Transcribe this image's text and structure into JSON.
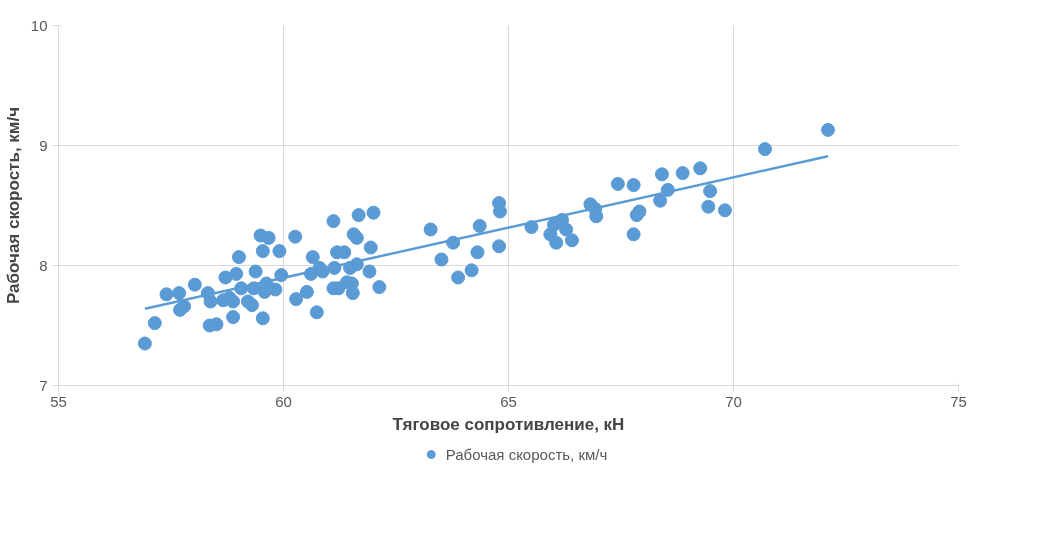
{
  "chart_data": {
    "type": "scatter",
    "xlabel": "Тяговое сопротивление, кН",
    "ylabel": "Рабочая скорость, км/ч",
    "xlim": [
      55,
      75
    ],
    "xticks": [
      55,
      60,
      65,
      70,
      75
    ],
    "ylim": [
      7,
      10
    ],
    "yticks": [
      7,
      8,
      9,
      10
    ],
    "grid": true,
    "legend": "bottom",
    "marker": "circle",
    "series": [
      {
        "name": "Рабочая скорость, км/ч",
        "color": "#5b9bd5",
        "x": [
          56.92,
          57.14,
          57.4,
          57.68,
          57.7,
          57.79,
          58.03,
          58.32,
          58.38,
          58.36,
          58.51,
          58.71,
          58.66,
          58.8,
          58.88,
          58.88,
          58.95,
          59.01,
          59.06,
          59.21,
          59.3,
          59.34,
          59.38,
          59.49,
          59.54,
          59.54,
          59.58,
          59.62,
          59.67,
          59.82,
          59.91,
          59.95,
          60.26,
          60.28,
          60.52,
          60.61,
          60.65,
          60.74,
          60.8,
          60.87,
          61.11,
          61.11,
          61.13,
          61.19,
          61.22,
          61.35,
          61.41,
          61.48,
          61.52,
          61.54,
          61.56,
          61.63,
          61.63,
          61.67,
          61.91,
          61.94,
          62.0,
          62.13,
          63.27,
          63.51,
          63.77,
          63.88,
          64.18,
          64.31,
          64.36,
          64.79,
          64.81,
          64.79,
          65.51,
          65.93,
          66.01,
          66.06,
          66.19,
          66.28,
          66.41,
          66.82,
          66.93,
          66.95,
          67.43,
          67.78,
          67.78,
          67.85,
          67.91,
          68.37,
          68.41,
          68.54,
          68.87,
          69.26,
          69.44,
          69.48,
          69.81,
          70.7,
          72.1
        ],
        "values": [
          7.35,
          7.52,
          7.76,
          7.77,
          7.63,
          7.66,
          7.84,
          7.77,
          7.7,
          7.5,
          7.51,
          7.9,
          7.71,
          7.73,
          7.7,
          7.57,
          7.93,
          8.07,
          7.81,
          7.7,
          7.67,
          7.81,
          7.95,
          8.25,
          8.12,
          7.56,
          7.78,
          7.85,
          8.23,
          7.8,
          8.12,
          7.92,
          8.24,
          7.72,
          7.78,
          7.93,
          8.07,
          7.61,
          7.98,
          7.95,
          8.37,
          7.81,
          7.98,
          8.11,
          7.81,
          8.11,
          7.86,
          7.98,
          7.85,
          7.77,
          8.26,
          8.23,
          8.01,
          8.42,
          7.95,
          8.15,
          8.44,
          7.82,
          8.3,
          8.05,
          8.19,
          7.9,
          7.96,
          8.11,
          8.33,
          8.52,
          8.45,
          8.16,
          8.32,
          8.26,
          8.34,
          8.19,
          8.38,
          8.3,
          8.21,
          8.51,
          8.47,
          8.41,
          8.68,
          8.67,
          8.26,
          8.42,
          8.45,
          8.54,
          8.76,
          8.63,
          8.77,
          8.81,
          8.49,
          8.62,
          8.46,
          8.97,
          9.13
        ]
      },
      {
        "type": "line",
        "marker": "none",
        "color": "#5b9bd5",
        "x": [
          56.92,
          72.1
        ],
        "values": [
          7.64,
          8.91
        ]
      }
    ]
  }
}
